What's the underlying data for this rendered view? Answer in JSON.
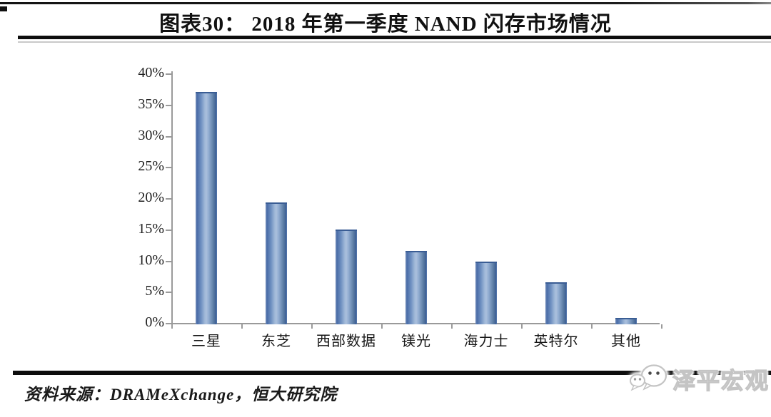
{
  "header": {
    "title": "图表30：  2018 年第一季度 NAND 闪存市场情况"
  },
  "chart_data": {
    "type": "bar",
    "title": "2018 年第一季度 NAND 闪存市场情况",
    "categories": [
      "三星",
      "东芝",
      "西部数据",
      "镁光",
      "海力士",
      "英特尔",
      "其他"
    ],
    "values": [
      37.0,
      19.3,
      15.0,
      11.5,
      9.8,
      6.5,
      0.8
    ],
    "unit": "%",
    "xlabel": "",
    "ylabel": "",
    "ylim": [
      0,
      40
    ],
    "ytick_step": 5,
    "ytick_labels": [
      "0%",
      "5%",
      "10%",
      "15%",
      "20%",
      "25%",
      "30%",
      "35%",
      "40%"
    ],
    "grid": false,
    "legend": false,
    "bar_color_edge": "#3f64a0",
    "bar_color_mid": "#abc0dd",
    "axis_color": "#9a9a9a"
  },
  "footer": {
    "source_label": "资料来源：",
    "source_value": "DRAMeXchange，恒大研究院",
    "watermark": "泽平宏观",
    "watermark_icon": "wechat-icon"
  }
}
